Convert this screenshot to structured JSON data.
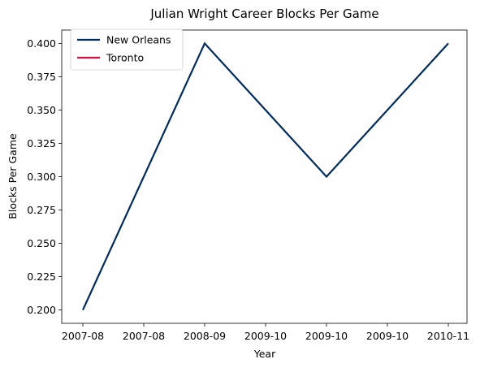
{
  "chart_data": {
    "type": "line",
    "title": "Julian Wright Career Blocks Per Game",
    "xlabel": "Year",
    "ylabel": "Blocks Per Game",
    "x_tick_labels": [
      "2007-08",
      "2007-08",
      "2008-09",
      "2009-10",
      "2009-10",
      "2009-10",
      "2010-11"
    ],
    "ylim": [
      0.19,
      0.41
    ],
    "y_ticks": [
      0.2,
      0.225,
      0.25,
      0.275,
      0.3,
      0.325,
      0.35,
      0.375,
      0.4
    ],
    "y_tick_labels": [
      "0.200",
      "0.225",
      "0.250",
      "0.275",
      "0.300",
      "0.325",
      "0.350",
      "0.375",
      "0.400"
    ],
    "grid": false,
    "legend_position": "top-left",
    "series": [
      {
        "name": "New Orleans",
        "color": "#002B5C",
        "points": [
          {
            "x": "2007-08",
            "y": 0.2
          },
          {
            "x": "2008-09",
            "y": 0.4
          },
          {
            "x": "2009-10",
            "y": 0.3
          },
          {
            "x": "2010-11",
            "y": 0.4
          }
        ]
      },
      {
        "name": "Toronto",
        "color": "#CE1141",
        "points": []
      }
    ]
  }
}
